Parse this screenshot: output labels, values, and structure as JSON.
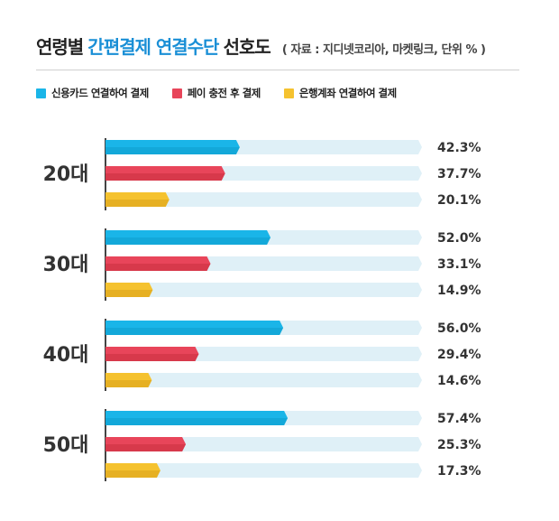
{
  "title": {
    "part1": "연령별",
    "part2": "간편결제 연결수단",
    "part3": "선호도",
    "source": "( 자료 : 지디넷코리아, 마켓링크, 단위 % )"
  },
  "colors": {
    "card": "#1ab5e8",
    "pay": "#e8455a",
    "bank": "#f5c22f",
    "track": "#dff0f7",
    "axis": "#444444"
  },
  "chart_data": {
    "type": "bar",
    "orientation": "horizontal",
    "title": "연령별 간편결제 연결수단 선호도",
    "unit": "%",
    "categories": [
      "20대",
      "30대",
      "40대",
      "50대"
    ],
    "series": [
      {
        "name": "신용카드 연결하여 결제",
        "values": [
          42.3,
          52.0,
          56.0,
          57.4
        ],
        "labels": [
          "42.3%",
          "52.0%",
          "56.0%",
          "57.4%"
        ]
      },
      {
        "name": "페이 충전 후 결제",
        "values": [
          37.7,
          33.1,
          29.4,
          25.3
        ],
        "labels": [
          "37.7%",
          "33.1%",
          "29.4%",
          "25.3%"
        ]
      },
      {
        "name": "은행계좌 연결하여 결제",
        "values": [
          20.1,
          14.9,
          14.6,
          17.3
        ],
        "labels": [
          "20.1%",
          "14.9%",
          "14.6%",
          "17.3%"
        ]
      }
    ],
    "xlim": [
      0,
      100
    ],
    "legend": "top-left",
    "grid": false
  }
}
